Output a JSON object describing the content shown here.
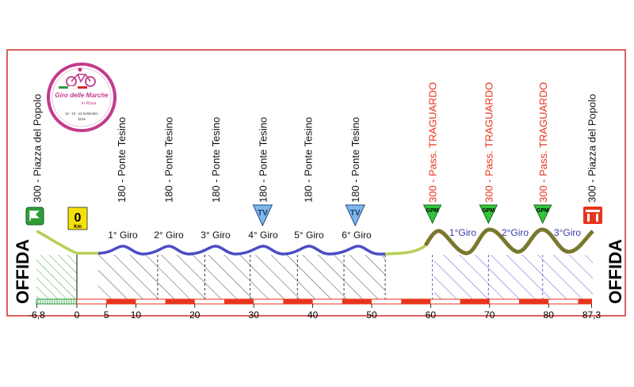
{
  "logo": {
    "title": "Giro delle Marche",
    "subtitle": "in Rosa",
    "dates": "12 - 13 - 14 Settembre",
    "year": "2016"
  },
  "start_town": "OFFIDA",
  "finish_town": "OFFIDA",
  "zero_marker": {
    "value": "0",
    "unit": "Km"
  },
  "distance_axis": {
    "min": -6.8,
    "max": 87.3,
    "ticks": [
      {
        "value": -6.8,
        "label": "-6,8"
      },
      {
        "value": 0,
        "label": "0"
      },
      {
        "value": 5,
        "label": "5"
      },
      {
        "value": 10,
        "label": "10"
      },
      {
        "value": 20,
        "label": "20"
      },
      {
        "value": 30,
        "label": "30"
      },
      {
        "value": 40,
        "label": "40"
      },
      {
        "value": 50,
        "label": "50"
      },
      {
        "value": 60,
        "label": "60"
      },
      {
        "value": 70,
        "label": "70"
      },
      {
        "value": 80,
        "label": "80"
      },
      {
        "value": 87.3,
        "label": "87,3"
      }
    ]
  },
  "waypoints": [
    {
      "km": -6.8,
      "label": "300 - Piazza del Popolo",
      "color": "#111111"
    },
    {
      "km": 7.5,
      "label": "180 - Ponte Tesino",
      "color": "#111111"
    },
    {
      "km": 15.5,
      "label": "180 - Ponte Tesino",
      "color": "#111111"
    },
    {
      "km": 23.5,
      "label": "180 - Ponte Tesino",
      "color": "#111111"
    },
    {
      "km": 31.5,
      "label": "180 - Ponte Tesino",
      "color": "#111111"
    },
    {
      "km": 39.2,
      "label": "180 - Ponte Tesino",
      "color": "#111111"
    },
    {
      "km": 47.2,
      "label": "180 - Ponte Tesino",
      "color": "#111111"
    },
    {
      "km": 60.3,
      "label": "300 - Pass. TRAGUARDO",
      "color": "#e8341c"
    },
    {
      "km": 69.8,
      "label": "300 - Pass. TRAGUARDO",
      "color": "#e8341c"
    },
    {
      "km": 79.0,
      "label": "300 - Pass. TRAGUARDO",
      "color": "#e8341c"
    },
    {
      "km": 87.3,
      "label": "300 - Piazza del Popolo",
      "color": "#111111"
    }
  ],
  "markers": [
    {
      "km": 31.5,
      "type": "TV",
      "label": "TV",
      "icon": "tv-sprint-icon"
    },
    {
      "km": 47.2,
      "type": "TV",
      "label": "TV",
      "icon": "tv-sprint-icon"
    },
    {
      "km": 60.3,
      "type": "GPM",
      "label": "GPM",
      "icon": "gpm-climb-icon"
    },
    {
      "km": 69.8,
      "type": "GPM",
      "label": "GPM",
      "icon": "gpm-climb-icon"
    },
    {
      "km": 79.0,
      "type": "GPM",
      "label": "GPM",
      "icon": "gpm-climb-icon"
    }
  ],
  "laps_low": [
    "1° Giro",
    "2° Giro",
    "3° Giro",
    "4° Giro",
    "5° Giro",
    "6° Giro"
  ],
  "laps_high": [
    "1°Giro",
    "2°Giro",
    "3°Giro"
  ],
  "colors": {
    "frame": "#d22b2b",
    "transfer": "#b6cf56",
    "flat_circuit": "#4c4cc6",
    "climb_circuit": "#4e8c2e",
    "climb_fill": "#9b6b2e",
    "hatch_green": "#3aa64a",
    "hatch_dark": "#333333",
    "hatch_blue": "#4c4cc6",
    "red_segment": "#e8341c",
    "traguardo": "#e8341c",
    "tv_badge": "#7fb6ea",
    "gpm_badge": "#33c23a"
  }
}
